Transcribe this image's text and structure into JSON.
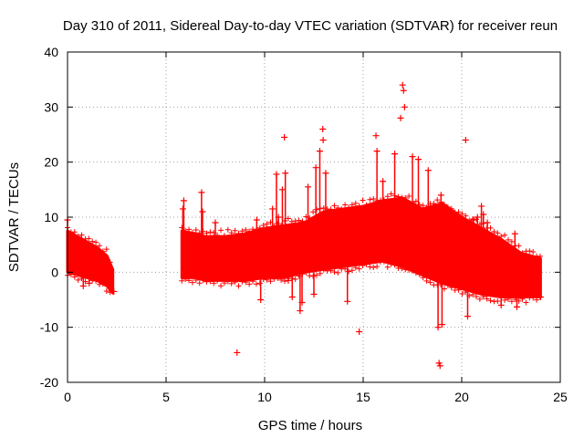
{
  "chart_data": {
    "type": "scatter",
    "title": "Day 310 of 2011, Sidereal Day-to-day VTEC variation (SDTVAR) for receiver reun",
    "xlabel": "GPS time / hours",
    "ylabel": "SDTVAR / TECUs",
    "xlim": [
      0,
      25
    ],
    "ylim": [
      -20,
      40
    ],
    "xticks": [
      0,
      5,
      10,
      15,
      20,
      25
    ],
    "yticks": [
      -20,
      -10,
      0,
      10,
      20,
      30,
      40
    ],
    "xtick_labels": [
      "0",
      "5",
      "10",
      "15",
      "20",
      "25"
    ],
    "ytick_labels": [
      "-20",
      "-10",
      "0",
      "10",
      "20",
      "30",
      "40"
    ],
    "grid": true,
    "marker": "+",
    "series": [
      {
        "name": "SDTVAR",
        "color": "#ff0000",
        "envelope": [
          {
            "x": 0.0,
            "lo": 0.0,
            "hi": 7.5
          },
          {
            "x": 0.5,
            "lo": -0.5,
            "hi": 6.5
          },
          {
            "x": 1.0,
            "lo": -1.0,
            "hi": 5.5
          },
          {
            "x": 1.5,
            "lo": -1.5,
            "hi": 4.5
          },
          {
            "x": 2.0,
            "lo": -2.5,
            "hi": 3.0
          },
          {
            "x": 2.3,
            "lo": -3.8,
            "hi": 0.5
          },
          {
            "x": 5.8,
            "lo": -1.0,
            "hi": 7.5
          },
          {
            "x": 6.5,
            "lo": -1.0,
            "hi": 7.0
          },
          {
            "x": 7.0,
            "lo": -1.5,
            "hi": 6.5
          },
          {
            "x": 8.0,
            "lo": -1.5,
            "hi": 6.5
          },
          {
            "x": 9.0,
            "lo": -1.5,
            "hi": 7.0
          },
          {
            "x": 10.0,
            "lo": -1.0,
            "hi": 8.0
          },
          {
            "x": 11.0,
            "lo": -1.0,
            "hi": 8.5
          },
          {
            "x": 12.0,
            "lo": 0.0,
            "hi": 9.0
          },
          {
            "x": 13.0,
            "lo": 0.5,
            "hi": 11.0
          },
          {
            "x": 14.0,
            "lo": 1.0,
            "hi": 11.5
          },
          {
            "x": 15.0,
            "lo": 1.5,
            "hi": 12.0
          },
          {
            "x": 16.0,
            "lo": 2.0,
            "hi": 13.0
          },
          {
            "x": 17.0,
            "lo": 1.0,
            "hi": 13.5
          },
          {
            "x": 18.0,
            "lo": -0.5,
            "hi": 11.5
          },
          {
            "x": 19.0,
            "lo": -2.0,
            "hi": 12.5
          },
          {
            "x": 20.0,
            "lo": -3.0,
            "hi": 10.0
          },
          {
            "x": 21.0,
            "lo": -4.0,
            "hi": 8.0
          },
          {
            "x": 22.0,
            "lo": -4.5,
            "hi": 6.0
          },
          {
            "x": 23.0,
            "lo": -4.5,
            "hi": 3.5
          },
          {
            "x": 24.0,
            "lo": -4.5,
            "hi": 2.5
          }
        ],
        "spikes": [
          {
            "x": 0.0,
            "y": 9.5
          },
          {
            "x": 0.8,
            "y": -2.5
          },
          {
            "x": 1.1,
            "y": -2.0
          },
          {
            "x": 2.35,
            "y": -3.5
          },
          {
            "x": 5.85,
            "y": 11.5
          },
          {
            "x": 5.9,
            "y": 13.0
          },
          {
            "x": 6.8,
            "y": 14.5
          },
          {
            "x": 6.85,
            "y": 11.0
          },
          {
            "x": 7.5,
            "y": 9.0
          },
          {
            "x": 8.6,
            "y": -14.6
          },
          {
            "x": 9.6,
            "y": 9.5
          },
          {
            "x": 9.8,
            "y": -5.0
          },
          {
            "x": 10.4,
            "y": 11.5
          },
          {
            "x": 10.6,
            "y": 17.8
          },
          {
            "x": 10.7,
            "y": 10.0
          },
          {
            "x": 10.9,
            "y": 15.0
          },
          {
            "x": 11.0,
            "y": 24.5
          },
          {
            "x": 11.05,
            "y": 18.0
          },
          {
            "x": 11.2,
            "y": -1.5
          },
          {
            "x": 11.4,
            "y": -4.5
          },
          {
            "x": 11.8,
            "y": -7.0
          },
          {
            "x": 11.9,
            "y": -5.5
          },
          {
            "x": 12.2,
            "y": 15.5
          },
          {
            "x": 12.5,
            "y": -4.0
          },
          {
            "x": 12.6,
            "y": 19.0
          },
          {
            "x": 12.8,
            "y": 22.0
          },
          {
            "x": 12.95,
            "y": 26.0
          },
          {
            "x": 12.97,
            "y": 24.0
          },
          {
            "x": 13.1,
            "y": 18.0
          },
          {
            "x": 14.2,
            "y": -5.3
          },
          {
            "x": 14.8,
            "y": -10.8
          },
          {
            "x": 15.65,
            "y": 24.8
          },
          {
            "x": 15.7,
            "y": 22.0
          },
          {
            "x": 16.0,
            "y": 16.5
          },
          {
            "x": 16.6,
            "y": 21.5
          },
          {
            "x": 16.9,
            "y": 28.0
          },
          {
            "x": 17.0,
            "y": 34.0
          },
          {
            "x": 17.05,
            "y": 33.0
          },
          {
            "x": 17.1,
            "y": 30.0
          },
          {
            "x": 17.5,
            "y": 21.0
          },
          {
            "x": 17.8,
            "y": 20.5
          },
          {
            "x": 18.3,
            "y": 18.5
          },
          {
            "x": 18.7,
            "y": 8.0
          },
          {
            "x": 18.8,
            "y": -10.0
          },
          {
            "x": 18.85,
            "y": -16.5
          },
          {
            "x": 18.9,
            "y": -17.0
          },
          {
            "x": 18.95,
            "y": 14.0
          },
          {
            "x": 19.0,
            "y": -9.5
          },
          {
            "x": 20.2,
            "y": 24.0
          },
          {
            "x": 20.3,
            "y": -8.0
          },
          {
            "x": 20.6,
            "y": 9.5
          },
          {
            "x": 20.8,
            "y": 10.0
          },
          {
            "x": 21.0,
            "y": 12.0
          },
          {
            "x": 21.1,
            "y": 10.5
          },
          {
            "x": 21.3,
            "y": 9.0
          },
          {
            "x": 22.0,
            "y": -6.0
          },
          {
            "x": 22.5,
            "y": 4.0
          },
          {
            "x": 22.7,
            "y": 7.0
          },
          {
            "x": 22.8,
            "y": -6.3
          },
          {
            "x": 23.9,
            "y": 2.0
          },
          {
            "x": 24.0,
            "y": -4.5
          }
        ]
      }
    ]
  }
}
